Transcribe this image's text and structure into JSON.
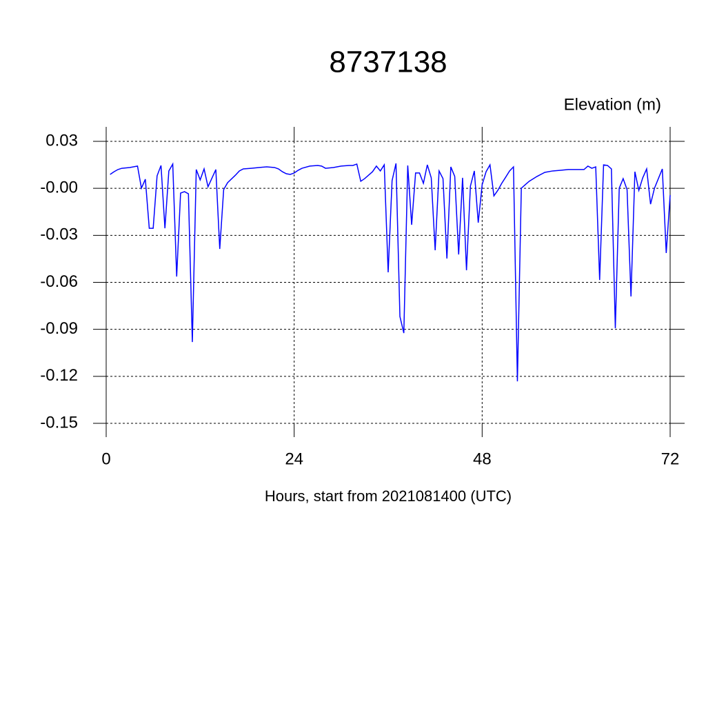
{
  "chart_data": {
    "type": "line",
    "title": "8737138",
    "y_label": "Elevation (m)",
    "x_label": "Hours, start from 2021081400 (UTC)",
    "x": [
      0.5,
      1,
      1.5,
      2,
      3,
      4,
      4.5,
      5,
      5.5,
      6,
      6.5,
      7,
      7.5,
      8,
      8.5,
      9,
      9.5,
      10,
      10.5,
      11,
      11.5,
      12,
      12.5,
      13,
      14,
      14.5,
      15,
      15.5,
      16.5,
      17,
      17.5,
      18.5,
      19.5,
      20.5,
      21.5,
      22,
      22.5,
      23,
      23.5,
      24,
      24.5,
      25,
      26,
      27,
      27.5,
      28,
      29,
      30,
      31,
      31.5,
      32,
      32.5,
      33,
      33.5,
      34,
      34.5,
      35,
      35.5,
      36,
      36.5,
      37,
      37.5,
      38,
      38.5,
      39,
      39.5,
      40,
      40.5,
      41,
      41.5,
      42,
      42.5,
      43,
      43.5,
      44,
      44.5,
      45,
      45.5,
      46,
      46.5,
      47,
      47.5,
      48,
      48.5,
      49,
      49.5,
      50,
      50.5,
      51,
      51.5,
      52,
      52.5,
      53,
      53.5,
      54,
      55,
      56,
      57,
      58,
      59,
      60,
      61,
      61.5,
      62,
      62.5,
      63,
      63.5,
      64,
      64.5,
      65,
      65.5,
      66,
      66.5,
      67,
      67.5,
      68,
      68.5,
      69,
      69.5,
      70,
      71,
      71.5,
      72
    ],
    "series": [
      {
        "color": "#0000ff",
        "values": [
          0.0089,
          0.0106,
          0.012,
          0.0128,
          0.0133,
          0.0142,
          0.0001,
          0.0058,
          -0.0255,
          -0.0255,
          0.008,
          0.0146,
          -0.0255,
          0.0111,
          0.0155,
          -0.0563,
          -0.003,
          -0.0021,
          -0.0035,
          -0.0981,
          0.012,
          0.0054,
          0.0124,
          0.001,
          0.012,
          -0.0387,
          -0.0008,
          0.0036,
          0.0084,
          0.0111,
          0.0124,
          0.0128,
          0.0133,
          0.0137,
          0.0133,
          0.0124,
          0.0106,
          0.0093,
          0.0089,
          0.0098,
          0.0115,
          0.0128,
          0.0142,
          0.0146,
          0.0142,
          0.0128,
          0.0133,
          0.0142,
          0.0146,
          0.0146,
          0.0155,
          0.0045,
          0.0062,
          0.0084,
          0.0106,
          0.0142,
          0.0111,
          0.015,
          -0.0536,
          0.0049,
          0.0159,
          -0.0818,
          -0.0924,
          0.0146,
          -0.0233,
          0.0098,
          0.0098,
          0.0032,
          0.015,
          0.0067,
          -0.0395,
          0.0111,
          0.0062,
          -0.0448,
          0.0137,
          0.0076,
          -0.0422,
          0.0067,
          -0.0523,
          0.0014,
          0.0111,
          -0.0219,
          0.0023,
          0.0106,
          0.015,
          -0.0048,
          -0.0013,
          0.0032,
          0.0071,
          0.0111,
          0.0137,
          -0.1232,
          0.0001,
          0.0023,
          0.0045,
          0.0076,
          0.0102,
          0.0111,
          0.0115,
          0.012,
          0.012,
          0.012,
          0.0142,
          0.0128,
          0.0137,
          -0.0585,
          0.015,
          0.0146,
          0.0124,
          -0.0893,
          0.0001,
          0.0062,
          -0.0008,
          -0.069,
          0.0106,
          -0.0013,
          0.0067,
          0.0124,
          -0.0101,
          0.0001,
          0.0124,
          -0.0413,
          -0.0043
        ]
      }
    ],
    "xlim": [
      0,
      72
    ],
    "xticks": [
      0,
      24,
      48,
      72
    ],
    "ylim": [
      -0.15,
      0.03
    ],
    "yticks": [
      0.03,
      {
        "value": 0,
        "label": "-0.00"
      },
      -0.03,
      -0.06,
      -0.09,
      -0.12,
      -0.15
    ],
    "grid": true
  }
}
